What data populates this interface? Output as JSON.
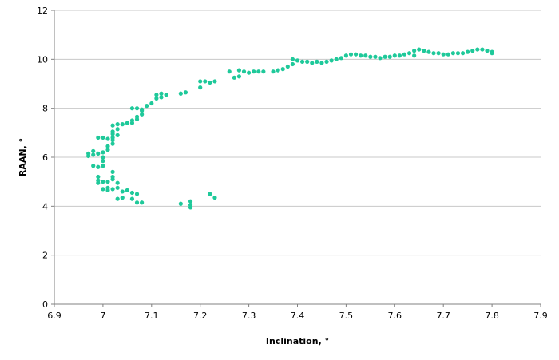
{
  "chart_data": {
    "type": "scatter",
    "title": "",
    "xlabel": "Inclination, °",
    "ylabel": "RAAN, °",
    "xlim": [
      6.9,
      7.9
    ],
    "ylim": [
      0,
      12
    ],
    "xticks": [
      "6.9",
      "7",
      "7.1",
      "7.2",
      "7.3",
      "7.4",
      "7.5",
      "7.6",
      "7.7",
      "7.8",
      "7.9"
    ],
    "yticks": [
      "0",
      "2",
      "4",
      "6",
      "8",
      "10",
      "12"
    ],
    "grid": "horizontal",
    "legend": "none",
    "marker_color": "#1fc99a",
    "series": [
      {
        "points": [
          [
            7.23,
            4.35
          ],
          [
            7.22,
            4.5
          ],
          [
            7.18,
            3.95
          ],
          [
            7.18,
            4.05
          ],
          [
            7.18,
            4.2
          ],
          [
            7.16,
            4.1
          ],
          [
            7.08,
            4.15
          ],
          [
            7.07,
            4.15
          ],
          [
            7.07,
            4.5
          ],
          [
            7.06,
            4.3
          ],
          [
            7.06,
            4.55
          ],
          [
            7.05,
            4.65
          ],
          [
            7.04,
            4.35
          ],
          [
            7.04,
            4.6
          ],
          [
            7.03,
            4.3
          ],
          [
            7.03,
            4.75
          ],
          [
            7.03,
            4.95
          ],
          [
            7.02,
            4.7
          ],
          [
            7.01,
            4.65
          ],
          [
            7.01,
            4.75
          ],
          [
            7.0,
            4.7
          ],
          [
            7.02,
            5.1
          ],
          [
            7.02,
            5.2
          ],
          [
            7.02,
            5.4
          ],
          [
            7.01,
            5.0
          ],
          [
            7.0,
            5.0
          ],
          [
            6.99,
            4.95
          ],
          [
            6.99,
            5.05
          ],
          [
            6.99,
            5.2
          ],
          [
            7.0,
            5.65
          ],
          [
            6.99,
            5.6
          ],
          [
            6.98,
            5.65
          ],
          [
            6.97,
            6.05
          ],
          [
            6.97,
            6.15
          ],
          [
            6.98,
            6.25
          ],
          [
            6.98,
            6.1
          ],
          [
            6.99,
            6.15
          ],
          [
            7.0,
            6.0
          ],
          [
            7.0,
            5.85
          ],
          [
            7.0,
            6.2
          ],
          [
            7.01,
            6.3
          ],
          [
            7.01,
            6.45
          ],
          [
            7.02,
            6.55
          ],
          [
            7.02,
            6.7
          ],
          [
            6.99,
            6.8
          ],
          [
            7.0,
            6.8
          ],
          [
            7.01,
            6.75
          ],
          [
            7.02,
            6.8
          ],
          [
            7.02,
            6.95
          ],
          [
            7.03,
            6.9
          ],
          [
            7.02,
            7.05
          ],
          [
            7.03,
            7.15
          ],
          [
            7.02,
            7.3
          ],
          [
            7.03,
            7.35
          ],
          [
            7.04,
            7.35
          ],
          [
            7.05,
            7.4
          ],
          [
            7.06,
            7.4
          ],
          [
            7.06,
            7.5
          ],
          [
            7.07,
            7.55
          ],
          [
            7.07,
            7.65
          ],
          [
            7.08,
            7.75
          ],
          [
            7.08,
            7.9
          ],
          [
            7.07,
            8.0
          ],
          [
            7.06,
            8.0
          ],
          [
            7.08,
            7.95
          ],
          [
            7.09,
            8.1
          ],
          [
            7.1,
            8.2
          ],
          [
            7.11,
            8.4
          ],
          [
            7.11,
            8.55
          ],
          [
            7.12,
            8.45
          ],
          [
            7.12,
            8.6
          ],
          [
            7.13,
            8.55
          ],
          [
            7.16,
            8.6
          ],
          [
            7.17,
            8.65
          ],
          [
            7.2,
            8.85
          ],
          [
            7.2,
            9.1
          ],
          [
            7.21,
            9.1
          ],
          [
            7.22,
            9.05
          ],
          [
            7.23,
            9.1
          ],
          [
            7.26,
            9.5
          ],
          [
            7.27,
            9.25
          ],
          [
            7.28,
            9.3
          ],
          [
            7.28,
            9.55
          ],
          [
            7.29,
            9.5
          ],
          [
            7.3,
            9.45
          ],
          [
            7.31,
            9.5
          ],
          [
            7.32,
            9.5
          ],
          [
            7.33,
            9.5
          ],
          [
            7.35,
            9.5
          ],
          [
            7.36,
            9.55
          ],
          [
            7.37,
            9.6
          ],
          [
            7.38,
            9.7
          ],
          [
            7.39,
            9.8
          ],
          [
            7.39,
            10.0
          ],
          [
            7.4,
            9.95
          ],
          [
            7.41,
            9.9
          ],
          [
            7.42,
            9.9
          ],
          [
            7.43,
            9.85
          ],
          [
            7.44,
            9.9
          ],
          [
            7.45,
            9.85
          ],
          [
            7.46,
            9.9
          ],
          [
            7.47,
            9.95
          ],
          [
            7.48,
            10.0
          ],
          [
            7.49,
            10.05
          ],
          [
            7.5,
            10.15
          ],
          [
            7.51,
            10.2
          ],
          [
            7.52,
            10.2
          ],
          [
            7.53,
            10.15
          ],
          [
            7.54,
            10.15
          ],
          [
            7.55,
            10.1
          ],
          [
            7.56,
            10.1
          ],
          [
            7.57,
            10.05
          ],
          [
            7.58,
            10.1
          ],
          [
            7.59,
            10.1
          ],
          [
            7.6,
            10.15
          ],
          [
            7.61,
            10.15
          ],
          [
            7.62,
            10.2
          ],
          [
            7.63,
            10.25
          ],
          [
            7.64,
            10.35
          ],
          [
            7.64,
            10.15
          ],
          [
            7.65,
            10.4
          ],
          [
            7.66,
            10.35
          ],
          [
            7.67,
            10.3
          ],
          [
            7.68,
            10.25
          ],
          [
            7.69,
            10.25
          ],
          [
            7.7,
            10.2
          ],
          [
            7.71,
            10.2
          ],
          [
            7.72,
            10.25
          ],
          [
            7.73,
            10.25
          ],
          [
            7.74,
            10.25
          ],
          [
            7.75,
            10.3
          ],
          [
            7.76,
            10.35
          ],
          [
            7.77,
            10.4
          ],
          [
            7.78,
            10.4
          ],
          [
            7.79,
            10.35
          ],
          [
            7.8,
            10.3
          ],
          [
            7.8,
            10.25
          ]
        ]
      }
    ]
  }
}
